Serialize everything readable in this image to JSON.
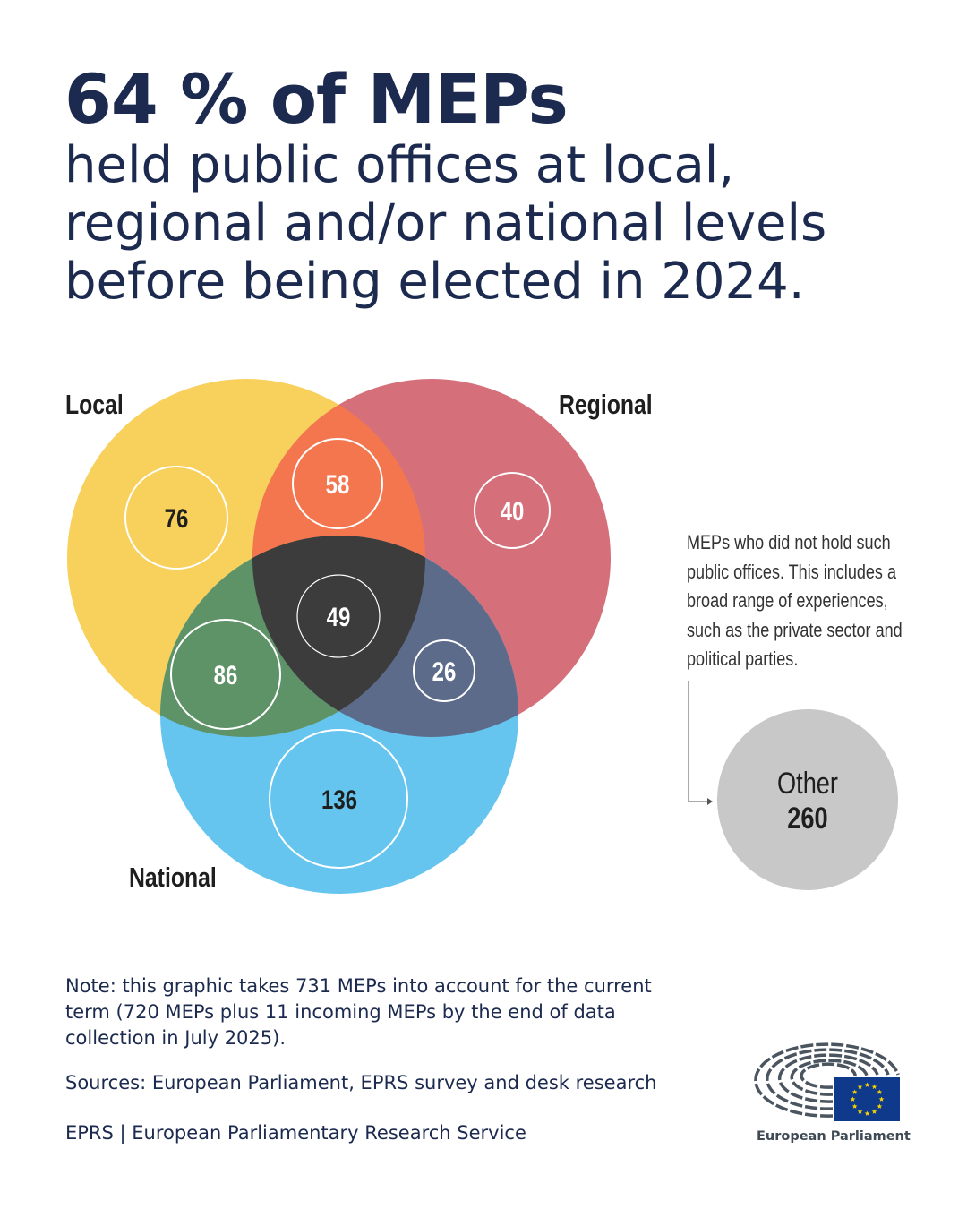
{
  "header": {
    "title": "64 % of MEPs",
    "subtitle": "held public offices at local, regional and/or national levels before being elected in 2024."
  },
  "diagram": {
    "type": "venn",
    "sets": [
      {
        "name": "Local",
        "color": "#f8d05c"
      },
      {
        "name": "Regional",
        "color": "#d5707b"
      },
      {
        "name": "National",
        "color": "#66c5ee"
      }
    ],
    "regions": {
      "local_only": 76,
      "regional_only": 40,
      "national_only": 136,
      "local_regional": 58,
      "local_national": 86,
      "regional_national": 26,
      "all_three": 49
    },
    "overlap_colors": {
      "local_regional": "#f3764f",
      "local_national": "#5e9267",
      "regional_national": "#5d6b8b",
      "all_three": "#3c3c3c"
    },
    "other": {
      "label": "Other",
      "value": 260,
      "color": "#c8c8c8"
    },
    "other_description": "MEPs who did not hold such public offices. This includes a broad range of experiences, such as the private sector and political parties."
  },
  "footer": {
    "note": "Note: this graphic takes 731 MEPs into account for the current term (720 MEPs plus 11 incoming MEPs by the end of data collection in July 2025).",
    "sources": "Sources: European Parliament, EPRS survey and desk research",
    "eprs": "EPRS | European Parliamentary Research Service",
    "logo_text": "European Parliament"
  }
}
